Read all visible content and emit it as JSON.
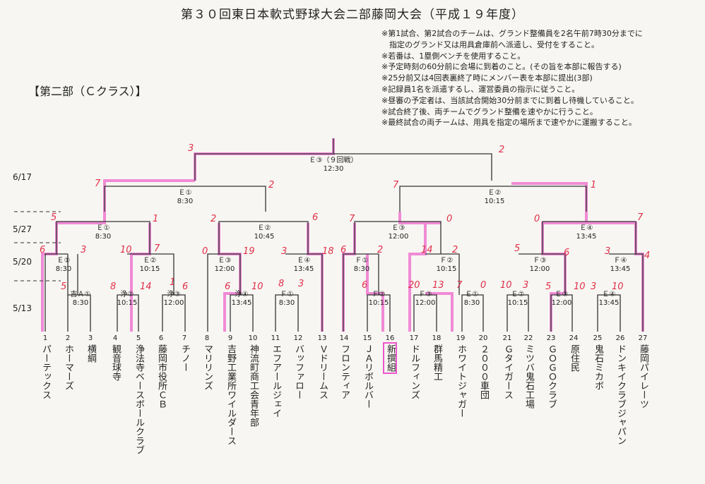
{
  "title": "第３０回東日本軟式野球大会二部藤岡大会（平成１９年度）",
  "section": "【第二部（Ｃクラス）】",
  "notes": [
    "※第1試合、第2試合のチームは、グランド整備員を2名午前7時30分までに",
    "　指定のグランド又は用具倉庫前へ派遣し、受付をすること。",
    "※若番は、1塁側ベンチを使用すること。",
    "※予定時刻の60分前に会場に到着のこと。(その旨を本部に報告する)",
    "※25分前又は4回表裏終了時にメンバー表を本部に提出(3部)",
    "※記録員1名を派遣するし、運営委員の指示に従うこと。",
    "※昼審の予定者は、当該試合開始30分前までに到着し待機していること。",
    "※試合終了後、両チームでグランド整備を速やかに行うこと。",
    "※最終試合の両チームは、用具を指定の場所まで速やかに運搬すること。"
  ],
  "dates": [
    "6/17",
    "5/27",
    "5/20",
    "5/13"
  ],
  "teams": [
    {
      "n": "1",
      "name": "パーテックス"
    },
    {
      "n": "2",
      "name": "ホーマーズ"
    },
    {
      "n": "3",
      "name": "横綱"
    },
    {
      "n": "4",
      "name": "観音球寺"
    },
    {
      "n": "5",
      "name": "浄法寺ベースボールクラブ"
    },
    {
      "n": "6",
      "name": "藤岡市役所ＣＢ"
    },
    {
      "n": "7",
      "name": "チノー"
    },
    {
      "n": "8",
      "name": "マリリンズ"
    },
    {
      "n": "9",
      "name": "吉野工業所ワイルダース"
    },
    {
      "n": "10",
      "name": "神流町商工会青年部"
    },
    {
      "n": "11",
      "name": "エフアールジェイ"
    },
    {
      "n": "12",
      "name": "バッファロー"
    },
    {
      "n": "13",
      "name": "Ｖドリームス"
    },
    {
      "n": "14",
      "name": "フロンティア"
    },
    {
      "n": "15",
      "name": "ＪＡリボルバー"
    },
    {
      "n": "16",
      "name": "新撰組"
    },
    {
      "n": "17",
      "name": "ドルフィンズ"
    },
    {
      "n": "18",
      "name": "群馬精工"
    },
    {
      "n": "19",
      "name": "ホワイトジャガー"
    },
    {
      "n": "20",
      "name": "２０００車団"
    },
    {
      "n": "21",
      "name": "Ｇタイガース"
    },
    {
      "n": "22",
      "name": "ミツバ鬼石工場"
    },
    {
      "n": "23",
      "name": "ＧＯＧＯクラブ"
    },
    {
      "n": "24",
      "name": "原住民"
    },
    {
      "n": "25",
      "name": "鬼石ミカボ"
    },
    {
      "n": "26",
      "name": "ドンキイクラブジャパン"
    },
    {
      "n": "27",
      "name": "藤岡パイレーツ"
    }
  ],
  "games": {
    "final": {
      "name": "Ｅ③（９回戦）",
      "time": "12:30"
    },
    "e1_top": {
      "name": "Ｅ①",
      "time": "8:30"
    },
    "e2_top": {
      "name": "Ｅ②",
      "time": "10:15"
    },
    "e1": {
      "name": "Ｅ①",
      "time": "8:30"
    },
    "e2": {
      "name": "Ｅ②",
      "time": "10:45"
    },
    "e3": {
      "name": "Ｅ③",
      "time": "12:00"
    },
    "e4": {
      "name": "Ｅ④",
      "time": "13:45"
    },
    "e1r": {
      "name": "Ｅ①",
      "time": "8:30"
    },
    "e2r": {
      "name": "Ｅ②",
      "time": "10:15"
    },
    "e3r": {
      "name": "Ｅ③",
      "time": "12:00"
    },
    "e4r": {
      "name": "Ｅ④",
      "time": "13:45"
    },
    "f1": {
      "name": "Ｆ①",
      "time": "8:30"
    },
    "f2": {
      "name": "Ｆ②",
      "time": "10:15"
    },
    "f3": {
      "name": "Ｆ③",
      "time": "12:00"
    },
    "f4": {
      "name": "Ｆ④",
      "time": "13:45"
    },
    "y1": {
      "name": "吉Ａ①",
      "time": "8:30"
    },
    "j2": {
      "name": "浄②",
      "time": "10:15"
    },
    "j3": {
      "name": "浄③",
      "time": "12:00"
    },
    "j4": {
      "name": "浄④",
      "time": "13:45"
    },
    "ff1": {
      "name": "Ｆ①",
      "time": "8:30"
    },
    "ff2": {
      "name": "Ｆ②",
      "time": "10:15"
    },
    "ff3": {
      "name": "Ｆ③",
      "time": "12:00"
    },
    "fe1": {
      "name": "Ｅ①",
      "time": "8:30"
    },
    "fe2": {
      "name": "Ｅ②",
      "time": "10:15"
    },
    "fe3": {
      "name": "Ｅ③",
      "time": "12:00"
    },
    "fe4": {
      "name": "Ｅ④",
      "time": "13:45"
    }
  }
}
